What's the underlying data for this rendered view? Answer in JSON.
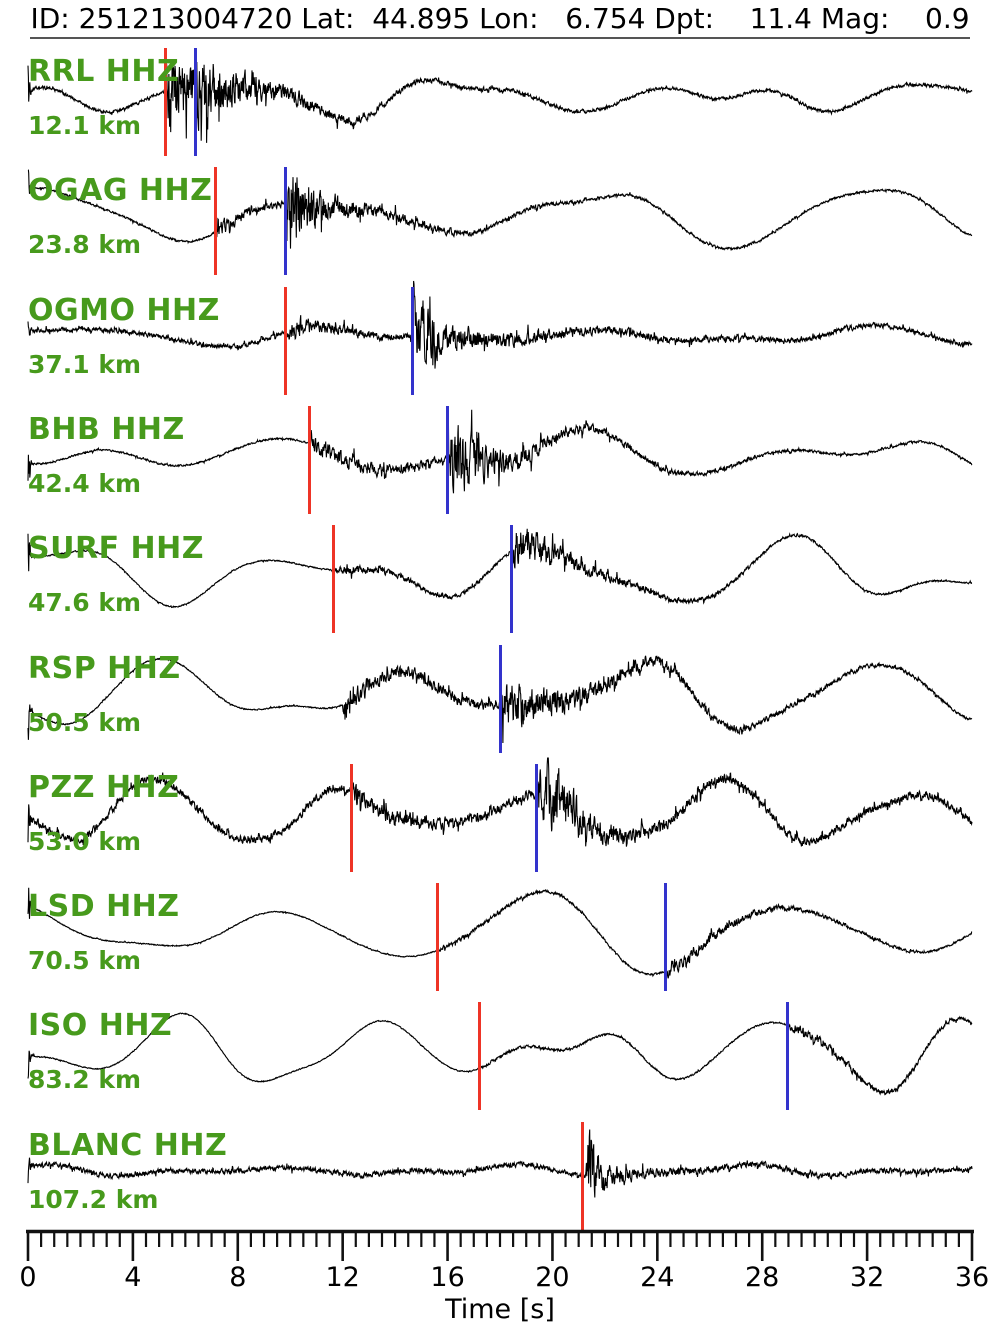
{
  "header": {
    "title_text": "ID: 251213004720 Lat:  44.895 Lon:   6.754 Dpt:    11.4 Mag:    0.9",
    "fields": [
      {
        "label": "ID:",
        "value": "251213004720"
      },
      {
        "label": "Lat:",
        "value": "44.895"
      },
      {
        "label": "Lon:",
        "value": "6.754"
      },
      {
        "label": "Dpt:",
        "value": "11.4"
      },
      {
        "label": "Mag:",
        "value": "0.9"
      }
    ]
  },
  "colors": {
    "station_label": "#479a1c",
    "p_pick": "#ee3426",
    "s_pick": "#3333cc",
    "trace": "#000000",
    "separator": "#555555"
  },
  "axis": {
    "label": "Time [s]",
    "min": 0,
    "max": 36,
    "major_step": 4,
    "minor_step": 0.5,
    "major_tick_labels": [
      "0",
      "4",
      "8",
      "12",
      "16",
      "20",
      "24",
      "28",
      "32",
      "36"
    ]
  },
  "chart_data": {
    "type": "line",
    "subtype": "seismogram-record-section",
    "xlabel": "Time [s]",
    "xlim": [
      0,
      36
    ],
    "pick_colors": {
      "p": "#ee3426",
      "s": "#3333cc"
    },
    "traces": [
      {
        "station": "RRL HHZ",
        "distance": "12.1 km",
        "distance_km": 12.1,
        "p_pick_s": 5.25,
        "s_pick_s": 6.4,
        "wave": {
          "seed": 11,
          "noise_base": 1.2,
          "bg": [
            {
              "amp": 16,
              "T": 9.0,
              "ph": 2.6
            },
            {
              "amp": 8,
              "T": 4.6,
              "ph": 0.5
            }
          ],
          "bursts": [
            {
              "t": 0,
              "amp": 28,
              "dec": 0.05
            },
            {
              "t": 5.25,
              "amp": 26,
              "dec": 1.2
            },
            {
              "t": 5.4,
              "amp": 8,
              "dec": 4
            },
            {
              "t": 6.4,
              "amp": 12,
              "dec": 2
            }
          ]
        }
      },
      {
        "station": "OGAG HHZ",
        "distance": "23.8 km",
        "distance_km": 23.8,
        "p_pick_s": 7.15,
        "s_pick_s": 9.8,
        "wave": {
          "seed": 22,
          "noise_base": 0.8,
          "bg": [
            {
              "amp": 28,
              "T": 10.5,
              "ph": 1.2
            },
            {
              "amp": 6,
              "T": 5.0,
              "ph": 3.0
            }
          ],
          "bursts": [
            {
              "t": 0,
              "amp": 20,
              "dec": 0.05
            },
            {
              "t": 7.15,
              "amp": 5,
              "dec": 2.5
            },
            {
              "t": 9.8,
              "amp": 30,
              "dec": 0.9
            },
            {
              "t": 10.0,
              "amp": 7,
              "dec": 4
            }
          ]
        }
      },
      {
        "station": "OGMO HHZ",
        "distance": "37.1 km",
        "distance_km": 37.1,
        "p_pick_s": 9.8,
        "s_pick_s": 14.65,
        "wave": {
          "seed": 33,
          "noise_base": 1.8,
          "bg": [
            {
              "amp": 8,
              "T": 10.0,
              "ph": 0.3
            },
            {
              "amp": 4,
              "T": 5.5,
              "ph": 2.0
            }
          ],
          "bursts": [
            {
              "t": 0,
              "amp": 10,
              "dec": 0.05
            },
            {
              "t": 9.8,
              "amp": 6,
              "dec": 2
            },
            {
              "t": 14.65,
              "amp": 26,
              "dec": 0.8
            },
            {
              "t": 14.9,
              "amp": 6,
              "dec": 5
            }
          ]
        }
      },
      {
        "station": "BHB HHZ",
        "distance": "42.4 km",
        "distance_km": 42.4,
        "p_pick_s": 10.75,
        "s_pick_s": 16.0,
        "wave": {
          "seed": 44,
          "noise_base": 0.7,
          "bg": [
            {
              "amp": 18,
              "T": 11.0,
              "ph": 2.4
            },
            {
              "amp": 12,
              "T": 6.2,
              "ph": 4.6
            }
          ],
          "bursts": [
            {
              "t": 0,
              "amp": 25,
              "dec": 0.05
            },
            {
              "t": 10.75,
              "amp": 7,
              "dec": 4
            },
            {
              "t": 16.0,
              "amp": 24,
              "dec": 1.0
            },
            {
              "t": 16.3,
              "amp": 8,
              "dec": 4
            }
          ]
        }
      },
      {
        "station": "SURF HHZ",
        "distance": "47.6 km",
        "distance_km": 47.6,
        "p_pick_s": 11.65,
        "s_pick_s": 18.45,
        "wave": {
          "seed": 55,
          "noise_base": 0.5,
          "bg": [
            {
              "amp": 28,
              "T": 9.5,
              "ph": 1.0
            },
            {
              "amp": 12,
              "T": 5.2,
              "ph": 4.0
            }
          ],
          "bursts": [
            {
              "t": 0,
              "amp": 35,
              "dec": 0.05
            },
            {
              "t": 11.65,
              "amp": 3.5,
              "dec": 4
            },
            {
              "t": 18.45,
              "amp": 12,
              "dec": 1.5
            },
            {
              "t": 18.6,
              "amp": 4,
              "dec": 5
            }
          ]
        }
      },
      {
        "station": "RSP HHZ",
        "distance": "50.5 km",
        "distance_km": 50.5,
        "p_pick_s": null,
        "s_pick_s": 18.0,
        "wave": {
          "seed": 66,
          "noise_base": 0.5,
          "bg": [
            {
              "amp": 30,
              "T": 9.0,
              "ph": 4.2
            },
            {
              "amp": 10,
              "T": 4.8,
              "ph": 1.5
            }
          ],
          "bursts": [
            {
              "t": 0,
              "amp": 30,
              "dec": 0.05
            },
            {
              "t": 12.0,
              "amp": 6,
              "dec": 8
            },
            {
              "t": 18.0,
              "amp": 12,
              "dec": 2
            },
            {
              "t": 18.2,
              "amp": 5,
              "dec": 6
            }
          ]
        }
      },
      {
        "station": "PZZ HHZ",
        "distance": "53.0 km",
        "distance_km": 53.0,
        "p_pick_s": 12.35,
        "s_pick_s": 19.4,
        "wave": {
          "seed": 77,
          "noise_base": 3.0,
          "bg": [
            {
              "amp": 30,
              "T": 7.2,
              "ph": 3.6
            },
            {
              "amp": 5,
              "T": 3.8,
              "ph": 0.8
            }
          ],
          "bursts": [
            {
              "t": 0,
              "amp": 30,
              "dec": 0.05
            },
            {
              "t": 12.35,
              "amp": 5,
              "dec": 3
            },
            {
              "t": 19.4,
              "amp": 24,
              "dec": 1.0
            },
            {
              "t": 19.7,
              "amp": 8,
              "dec": 3
            }
          ]
        }
      },
      {
        "station": "LSD HHZ",
        "distance": "70.5 km",
        "distance_km": 70.5,
        "p_pick_s": 15.6,
        "s_pick_s": 24.3,
        "wave": {
          "seed": 88,
          "noise_base": 0.4,
          "bg": [
            {
              "amp": 36,
              "T": 9.8,
              "ph": 1.8
            },
            {
              "amp": 6,
              "T": 5.5,
              "ph": 3.3
            }
          ],
          "bursts": [
            {
              "t": 0,
              "amp": 40,
              "dec": 0.05
            },
            {
              "t": 15.6,
              "amp": 1.5,
              "dec": 6
            },
            {
              "t": 24.3,
              "amp": 5,
              "dec": 4
            }
          ]
        }
      },
      {
        "station": "ISO HHZ",
        "distance": "83.2 km",
        "distance_km": 83.2,
        "p_pick_s": 17.2,
        "s_pick_s": 28.95,
        "wave": {
          "seed": 99,
          "noise_base": 0.4,
          "bg": [
            {
              "amp": 32,
              "T": 7.6,
              "ph": 3.1
            },
            {
              "amp": 10,
              "T": 4.2,
              "ph": 5.5
            }
          ],
          "bursts": [
            {
              "t": 0,
              "amp": 30,
              "dec": 0.05
            },
            {
              "t": 17.2,
              "amp": 1,
              "dec": 6
            },
            {
              "t": 28.95,
              "amp": 3.5,
              "dec": 5
            }
          ]
        }
      },
      {
        "station": "BLANC HHZ",
        "distance": "107.2 km",
        "distance_km": 107.2,
        "p_pick_s": 21.15,
        "s_pick_s": null,
        "wave": {
          "seed": 110,
          "noise_base": 2.0,
          "bg": [
            {
              "amp": 5,
              "T": 9.0,
              "ph": 1.5
            },
            {
              "amp": 3,
              "T": 4.5,
              "ph": 0.2
            }
          ],
          "bursts": [
            {
              "t": 0,
              "amp": 18,
              "dec": 0.05
            },
            {
              "t": 21.25,
              "amp": 42,
              "dec": 0.3
            },
            {
              "t": 21.4,
              "amp": 7,
              "dec": 2
            }
          ]
        }
      }
    ]
  }
}
